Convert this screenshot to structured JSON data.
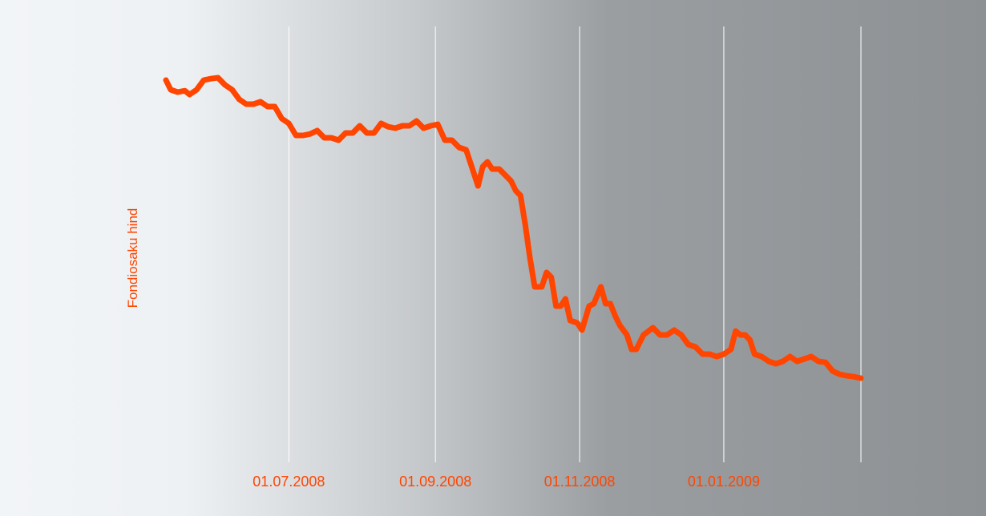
{
  "chart_data": {
    "type": "line",
    "title": "",
    "xlabel": "",
    "ylabel": "Fondiosaku hind",
    "tick_labels": [
      "01.07.2008",
      "01.09.2008",
      "01.11.2008",
      "01.01.2009"
    ],
    "grid": "vertical",
    "line_color": "#ff4500",
    "grid_color": "#ffffff",
    "label_color": "#ff4500",
    "x_range": [
      "2008-05-10",
      "2009-02-28"
    ],
    "y_range": [
      0,
      100
    ],
    "series": [
      {
        "points": [
          [
            "2008-05-10",
            100
          ],
          [
            "2008-05-12",
            98
          ],
          [
            "2008-05-15",
            97.5
          ],
          [
            "2008-05-18",
            97.8
          ],
          [
            "2008-05-20",
            97
          ],
          [
            "2008-05-23",
            98
          ],
          [
            "2008-05-26",
            100
          ],
          [
            "2008-05-29",
            100.3
          ],
          [
            "2008-06-01",
            100.5
          ],
          [
            "2008-06-04",
            99
          ],
          [
            "2008-06-07",
            98
          ],
          [
            "2008-06-10",
            96
          ],
          [
            "2008-06-13",
            95
          ],
          [
            "2008-06-16",
            95
          ],
          [
            "2008-06-19",
            95.5
          ],
          [
            "2008-06-22",
            94.5
          ],
          [
            "2008-06-25",
            94.5
          ],
          [
            "2008-06-28",
            92
          ],
          [
            "2008-07-01",
            91
          ],
          [
            "2008-07-04",
            88.5
          ],
          [
            "2008-07-07",
            88.5
          ],
          [
            "2008-07-10",
            88.8
          ],
          [
            "2008-07-13",
            89.5
          ],
          [
            "2008-07-16",
            88
          ],
          [
            "2008-07-19",
            88
          ],
          [
            "2008-07-22",
            87.5
          ],
          [
            "2008-07-25",
            89
          ],
          [
            "2008-07-28",
            89
          ],
          [
            "2008-07-31",
            90.5
          ],
          [
            "2008-08-03",
            89
          ],
          [
            "2008-08-06",
            89
          ],
          [
            "2008-08-09",
            91
          ],
          [
            "2008-08-12",
            90.3
          ],
          [
            "2008-08-15",
            90
          ],
          [
            "2008-08-18",
            90.5
          ],
          [
            "2008-08-21",
            90.5
          ],
          [
            "2008-08-24",
            91.5
          ],
          [
            "2008-08-27",
            90
          ],
          [
            "2008-08-30",
            90.5
          ],
          [
            "2008-09-02",
            90.8
          ],
          [
            "2008-09-05",
            87.5
          ],
          [
            "2008-09-08",
            87.5
          ],
          [
            "2008-09-11",
            86
          ],
          [
            "2008-09-14",
            85.5
          ],
          [
            "2008-09-17",
            81
          ],
          [
            "2008-09-19",
            78
          ],
          [
            "2008-09-21",
            82
          ],
          [
            "2008-09-23",
            83
          ],
          [
            "2008-09-25",
            81.5
          ],
          [
            "2008-09-28",
            81.5
          ],
          [
            "2008-10-01",
            80
          ],
          [
            "2008-10-03",
            79
          ],
          [
            "2008-10-05",
            77
          ],
          [
            "2008-10-07",
            76
          ],
          [
            "2008-10-09",
            70
          ],
          [
            "2008-10-11",
            63
          ],
          [
            "2008-10-13",
            57
          ],
          [
            "2008-10-16",
            57
          ],
          [
            "2008-10-18",
            60
          ],
          [
            "2008-10-20",
            59
          ],
          [
            "2008-10-22",
            53
          ],
          [
            "2008-10-24",
            53
          ],
          [
            "2008-10-26",
            54.5
          ],
          [
            "2008-10-28",
            50
          ],
          [
            "2008-10-31",
            49.5
          ],
          [
            "2008-11-02",
            48
          ],
          [
            "2008-11-05",
            53
          ],
          [
            "2008-11-07",
            53.5
          ],
          [
            "2008-11-10",
            57
          ],
          [
            "2008-11-12",
            53.5
          ],
          [
            "2008-11-14",
            53.5
          ],
          [
            "2008-11-16",
            51
          ],
          [
            "2008-11-18",
            49
          ],
          [
            "2008-11-21",
            47
          ],
          [
            "2008-11-23",
            44
          ],
          [
            "2008-11-25",
            44
          ],
          [
            "2008-11-28",
            47
          ],
          [
            "2008-12-02",
            48.5
          ],
          [
            "2008-12-05",
            47
          ],
          [
            "2008-12-08",
            47
          ],
          [
            "2008-12-11",
            48
          ],
          [
            "2008-12-14",
            47
          ],
          [
            "2008-12-17",
            45
          ],
          [
            "2008-12-20",
            44.5
          ],
          [
            "2008-12-23",
            43
          ],
          [
            "2008-12-26",
            43
          ],
          [
            "2008-12-29",
            42.5
          ],
          [
            "2009-01-01",
            43
          ],
          [
            "2009-01-04",
            44
          ],
          [
            "2009-01-06",
            47.8
          ],
          [
            "2009-01-08",
            47
          ],
          [
            "2009-01-10",
            47
          ],
          [
            "2009-01-12",
            46
          ],
          [
            "2009-01-14",
            43
          ],
          [
            "2009-01-17",
            42.5
          ],
          [
            "2009-01-20",
            41.5
          ],
          [
            "2009-01-23",
            41
          ],
          [
            "2009-01-26",
            41.5
          ],
          [
            "2009-01-29",
            42.5
          ],
          [
            "2009-02-01",
            41.5
          ],
          [
            "2009-02-04",
            42
          ],
          [
            "2009-02-07",
            42.5
          ],
          [
            "2009-02-10",
            41.5
          ],
          [
            "2009-02-13",
            41.3
          ],
          [
            "2009-02-16",
            39.5
          ],
          [
            "2009-02-19",
            38.8
          ],
          [
            "2009-02-22",
            38.5
          ],
          [
            "2009-02-25",
            38.3
          ],
          [
            "2009-02-28",
            38
          ]
        ]
      }
    ]
  }
}
